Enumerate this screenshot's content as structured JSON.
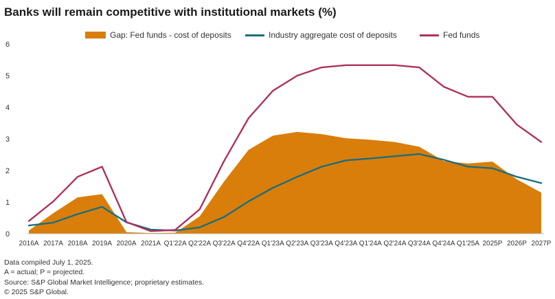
{
  "chart_data": {
    "type": "line",
    "title": "Banks will remain competitive with institutional markets (%)",
    "xlabel": "",
    "ylabel": "",
    "ylim": [
      0,
      6
    ],
    "yticks": [
      "0",
      "1",
      "2",
      "3",
      "4",
      "5",
      "6"
    ],
    "grid": false,
    "legend_position": "top-center",
    "categories": [
      "2016A",
      "2017A",
      "2018A",
      "2019A",
      "2020A",
      "2021A",
      "Q1'22A",
      "Q2'22A",
      "Q3'22A",
      "Q4'22A",
      "Q1'23A",
      "Q2'23A",
      "Q3'23A",
      "Q4'23A",
      "Q1'24A",
      "Q2'24A",
      "Q3'24A",
      "Q4'24A",
      "Q1'25A",
      "2025P",
      "2026P",
      "2027P"
    ],
    "series": [
      {
        "name": "Gap: Fed funds - cost of deposits",
        "type": "area",
        "color": "#d97e0a",
        "values": [
          0.1,
          0.65,
          1.15,
          1.25,
          0.05,
          0.02,
          0.03,
          0.55,
          1.65,
          2.65,
          3.1,
          3.22,
          3.15,
          3.02,
          2.97,
          2.9,
          2.75,
          2.3,
          2.22,
          2.28,
          1.72,
          1.3
        ]
      },
      {
        "name": "Industry aggregate cost of deposits",
        "type": "line",
        "color": "#1a6e7e",
        "values": [
          0.26,
          0.35,
          0.62,
          0.85,
          0.36,
          0.13,
          0.1,
          0.2,
          0.53,
          1.02,
          1.45,
          1.8,
          2.12,
          2.32,
          2.38,
          2.45,
          2.52,
          2.34,
          2.12,
          2.07,
          1.8,
          1.6
        ]
      },
      {
        "name": "Fed funds",
        "type": "line",
        "color": "#b0315c",
        "values": [
          0.4,
          1.02,
          1.8,
          2.12,
          0.37,
          0.08,
          0.12,
          0.77,
          2.3,
          3.65,
          4.52,
          5.0,
          5.26,
          5.33,
          5.33,
          5.33,
          5.26,
          4.65,
          4.33,
          4.33,
          3.45,
          2.9
        ]
      }
    ]
  },
  "footnotes": [
    "Data compiled July 1, 2025.",
    "A = actual; P = projected.",
    "Source: S&P Global Market Intelligence; proprietary estimates.",
    "© 2025 S&P Global."
  ]
}
